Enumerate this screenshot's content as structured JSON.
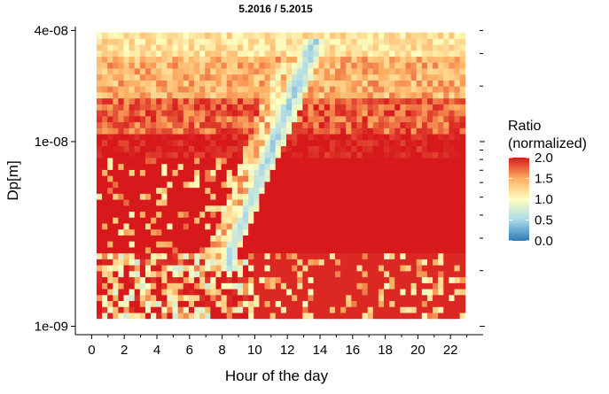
{
  "chart_data": {
    "type": "heatmap",
    "title": "5.2016 / 5.2015",
    "xlabel": "Hour of the day",
    "ylabel": "Dp[m]",
    "x_range": [
      0.3,
      22.9
    ],
    "x_axis_limits": [
      -1,
      24
    ],
    "x_ticks": [
      0,
      2,
      4,
      6,
      8,
      10,
      12,
      14,
      16,
      18,
      20,
      22
    ],
    "x_tick_labels": [
      "0",
      "2",
      "4",
      "6",
      "8",
      "10",
      "12",
      "14",
      "16",
      "18",
      "20",
      "22"
    ],
    "y_scale": "log",
    "y_range": [
      1.1e-09,
      3.9e-08
    ],
    "y_axis_limits": [
      9e-10,
      4.2e-08
    ],
    "y_ticks": [
      1e-09,
      1e-08,
      4e-08
    ],
    "y_tick_labels": [
      "1e-09",
      "1e-08",
      "4e-08"
    ],
    "n_hour_bins": 68,
    "n_size_bins": 48,
    "legend": {
      "title_line1": "Ratio",
      "title_line2": "(normalized)",
      "placement": "right",
      "ticks": [
        2.0,
        1.5,
        1.0,
        0.5,
        0.0
      ],
      "tick_labels": [
        "2.0",
        "1.5",
        "1.0",
        "0.5",
        "0.0"
      ],
      "range": [
        0,
        2
      ],
      "colorscale": [
        [
          0.0,
          "#2c7bb6"
        ],
        [
          0.25,
          "#abd9e9"
        ],
        [
          0.5,
          "#ffffbf"
        ],
        [
          0.75,
          "#fdae61"
        ],
        [
          1.0,
          "#d7191c"
        ]
      ]
    },
    "features": {
      "background_ratio_large_sizes": 1.2,
      "high_ratio_band_dp_range": [
        2.5e-09,
        8e-09
      ],
      "high_ratio_band_value": 2.0,
      "diagonal_low_ratio_streak": {
        "start_hour": 8.5,
        "start_dp": 2.5e-09,
        "end_hour": 13.5,
        "end_dp": 3.2e-08,
        "value": 0.3
      },
      "early_morning_mixed_small_sizes_hours": [
        0,
        10
      ]
    }
  }
}
